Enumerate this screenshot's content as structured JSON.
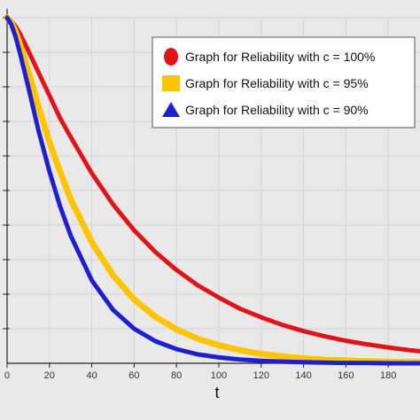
{
  "chart_data": {
    "type": "line",
    "xlabel": "t",
    "ylabel": "",
    "xlim": [
      0,
      195
    ],
    "ylim": [
      0,
      1
    ],
    "x_ticks": [
      0,
      20,
      40,
      60,
      80,
      100,
      120,
      140,
      160,
      180
    ],
    "grid": true,
    "legend_position": "top-right",
    "x": [
      0,
      2,
      4,
      6,
      8,
      10,
      15,
      20,
      25,
      30,
      40,
      50,
      60,
      70,
      80,
      90,
      100,
      110,
      120,
      130,
      140,
      150,
      160,
      170,
      180,
      190,
      195
    ],
    "series": [
      {
        "name": "Graph for Reliability with c = 100%",
        "color": "#e0141b",
        "marker": "circle",
        "values": [
          1.0,
          0.99,
          0.975,
          0.955,
          0.93,
          0.905,
          0.84,
          0.775,
          0.71,
          0.655,
          0.55,
          0.46,
          0.385,
          0.322,
          0.27,
          0.226,
          0.19,
          0.158,
          0.133,
          0.111,
          0.093,
          0.078,
          0.065,
          0.055,
          0.046,
          0.038,
          0.035
        ]
      },
      {
        "name": "Graph for Reliability with c = 95%",
        "color": "#ffc400",
        "marker": "square",
        "values": [
          1.0,
          0.985,
          0.96,
          0.925,
          0.885,
          0.845,
          0.74,
          0.64,
          0.555,
          0.475,
          0.35,
          0.255,
          0.185,
          0.135,
          0.098,
          0.071,
          0.052,
          0.038,
          0.027,
          0.02,
          0.014,
          0.01,
          0.008,
          0.006,
          0.004,
          0.003,
          0.003
        ]
      },
      {
        "name": "Graph for Reliability with c = 90%",
        "color": "#1f1fd0",
        "marker": "triangle",
        "values": [
          1.0,
          0.98,
          0.945,
          0.9,
          0.85,
          0.8,
          0.67,
          0.555,
          0.455,
          0.37,
          0.24,
          0.155,
          0.1,
          0.064,
          0.041,
          0.026,
          0.017,
          0.011,
          0.007,
          0.005,
          0.003,
          0.002,
          0.001,
          0.001,
          0.0,
          0.0,
          0.0
        ]
      }
    ]
  }
}
